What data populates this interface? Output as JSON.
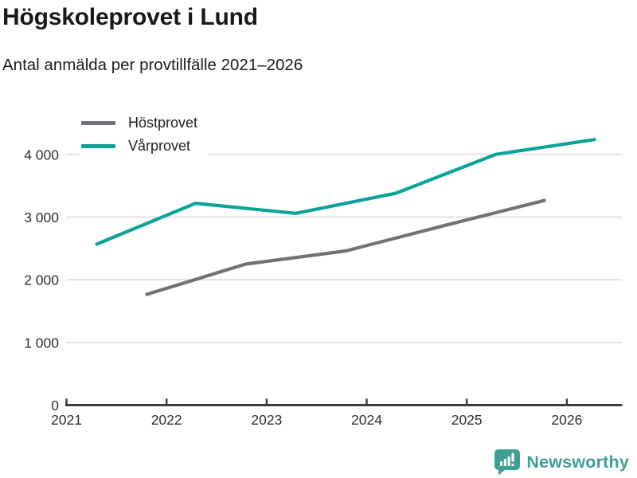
{
  "header": {
    "title": "Högskoleprovet i Lund",
    "subtitle": "Antal anmälda per provtillfälle 2021–2026"
  },
  "footer": {
    "brand": "Newsworthy",
    "brand_color": "#3f9f95",
    "logo_icon": "bar-chart-speech-bubble-icon"
  },
  "chart_data": {
    "type": "line",
    "title": "Högskoleprovet i Lund",
    "subtitle": "Antal anmälda per provtillfälle 2021–2026",
    "x_ticks": [
      2021,
      2022,
      2023,
      2024,
      2025,
      2026
    ],
    "x_tick_labels": [
      "2021",
      "2022",
      "2023",
      "2024",
      "2025",
      "2026"
    ],
    "y_ticks": [
      0,
      1000,
      2000,
      3000,
      4000
    ],
    "y_tick_labels": [
      "0",
      "1 000",
      "2 000",
      "3 000",
      "4 000"
    ],
    "xlim": [
      2021,
      2026.55
    ],
    "ylim": [
      0,
      4400
    ],
    "grid": "horizontal",
    "legend_position": "top-left",
    "axis_color": "#3d3d3d",
    "gridline_color": "#e3e3e3",
    "tick_label_color": "#2e2e2e",
    "series": [
      {
        "name": "Höstprovet",
        "color": "#757077",
        "x": [
          2021.3,
          2022.3,
          2023.3,
          2024.3,
          2025.3
        ],
        "x_note": "autumn sittings plotted at late-year positions",
        "x_plot": [
          2021.79,
          2022.79,
          2023.79,
          2024.79,
          2025.79
        ],
        "values": [
          1760,
          2250,
          2460,
          2870,
          3270
        ]
      },
      {
        "name": "Vårprovet",
        "color": "#0ba39a",
        "x_note": "spring sittings plotted at early-year positions",
        "x_plot": [
          2021.29,
          2022.29,
          2023.29,
          2024.29,
          2025.29,
          2026.29
        ],
        "x": [
          2021.29,
          2022.29,
          2023.29,
          2024.29,
          2025.29,
          2026.29
        ],
        "values": [
          2560,
          3220,
          3060,
          3380,
          4000,
          4240
        ]
      }
    ]
  }
}
